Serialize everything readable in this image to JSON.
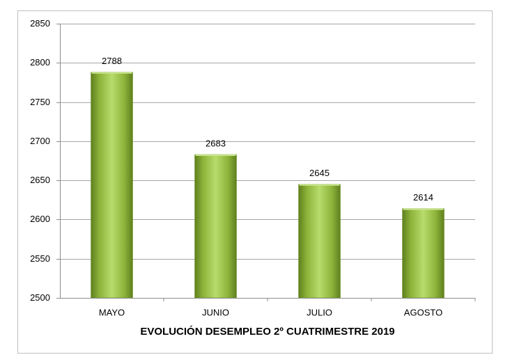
{
  "chart_data": {
    "type": "bar",
    "x_label": "EVOLUCIÓN DESEMPLEO 2º CUATRIMESTRE 2019",
    "categories": [
      "MAYO",
      "JUNIO",
      "JULIO",
      "AGOSTO"
    ],
    "values": [
      2788,
      2683,
      2645,
      2614
    ],
    "color": "#9bc53d",
    "ylim": [
      2500,
      2850
    ],
    "yticks": [
      2500,
      2550,
      2600,
      2650,
      2700,
      2750,
      2800,
      2850
    ],
    "grid": true
  }
}
